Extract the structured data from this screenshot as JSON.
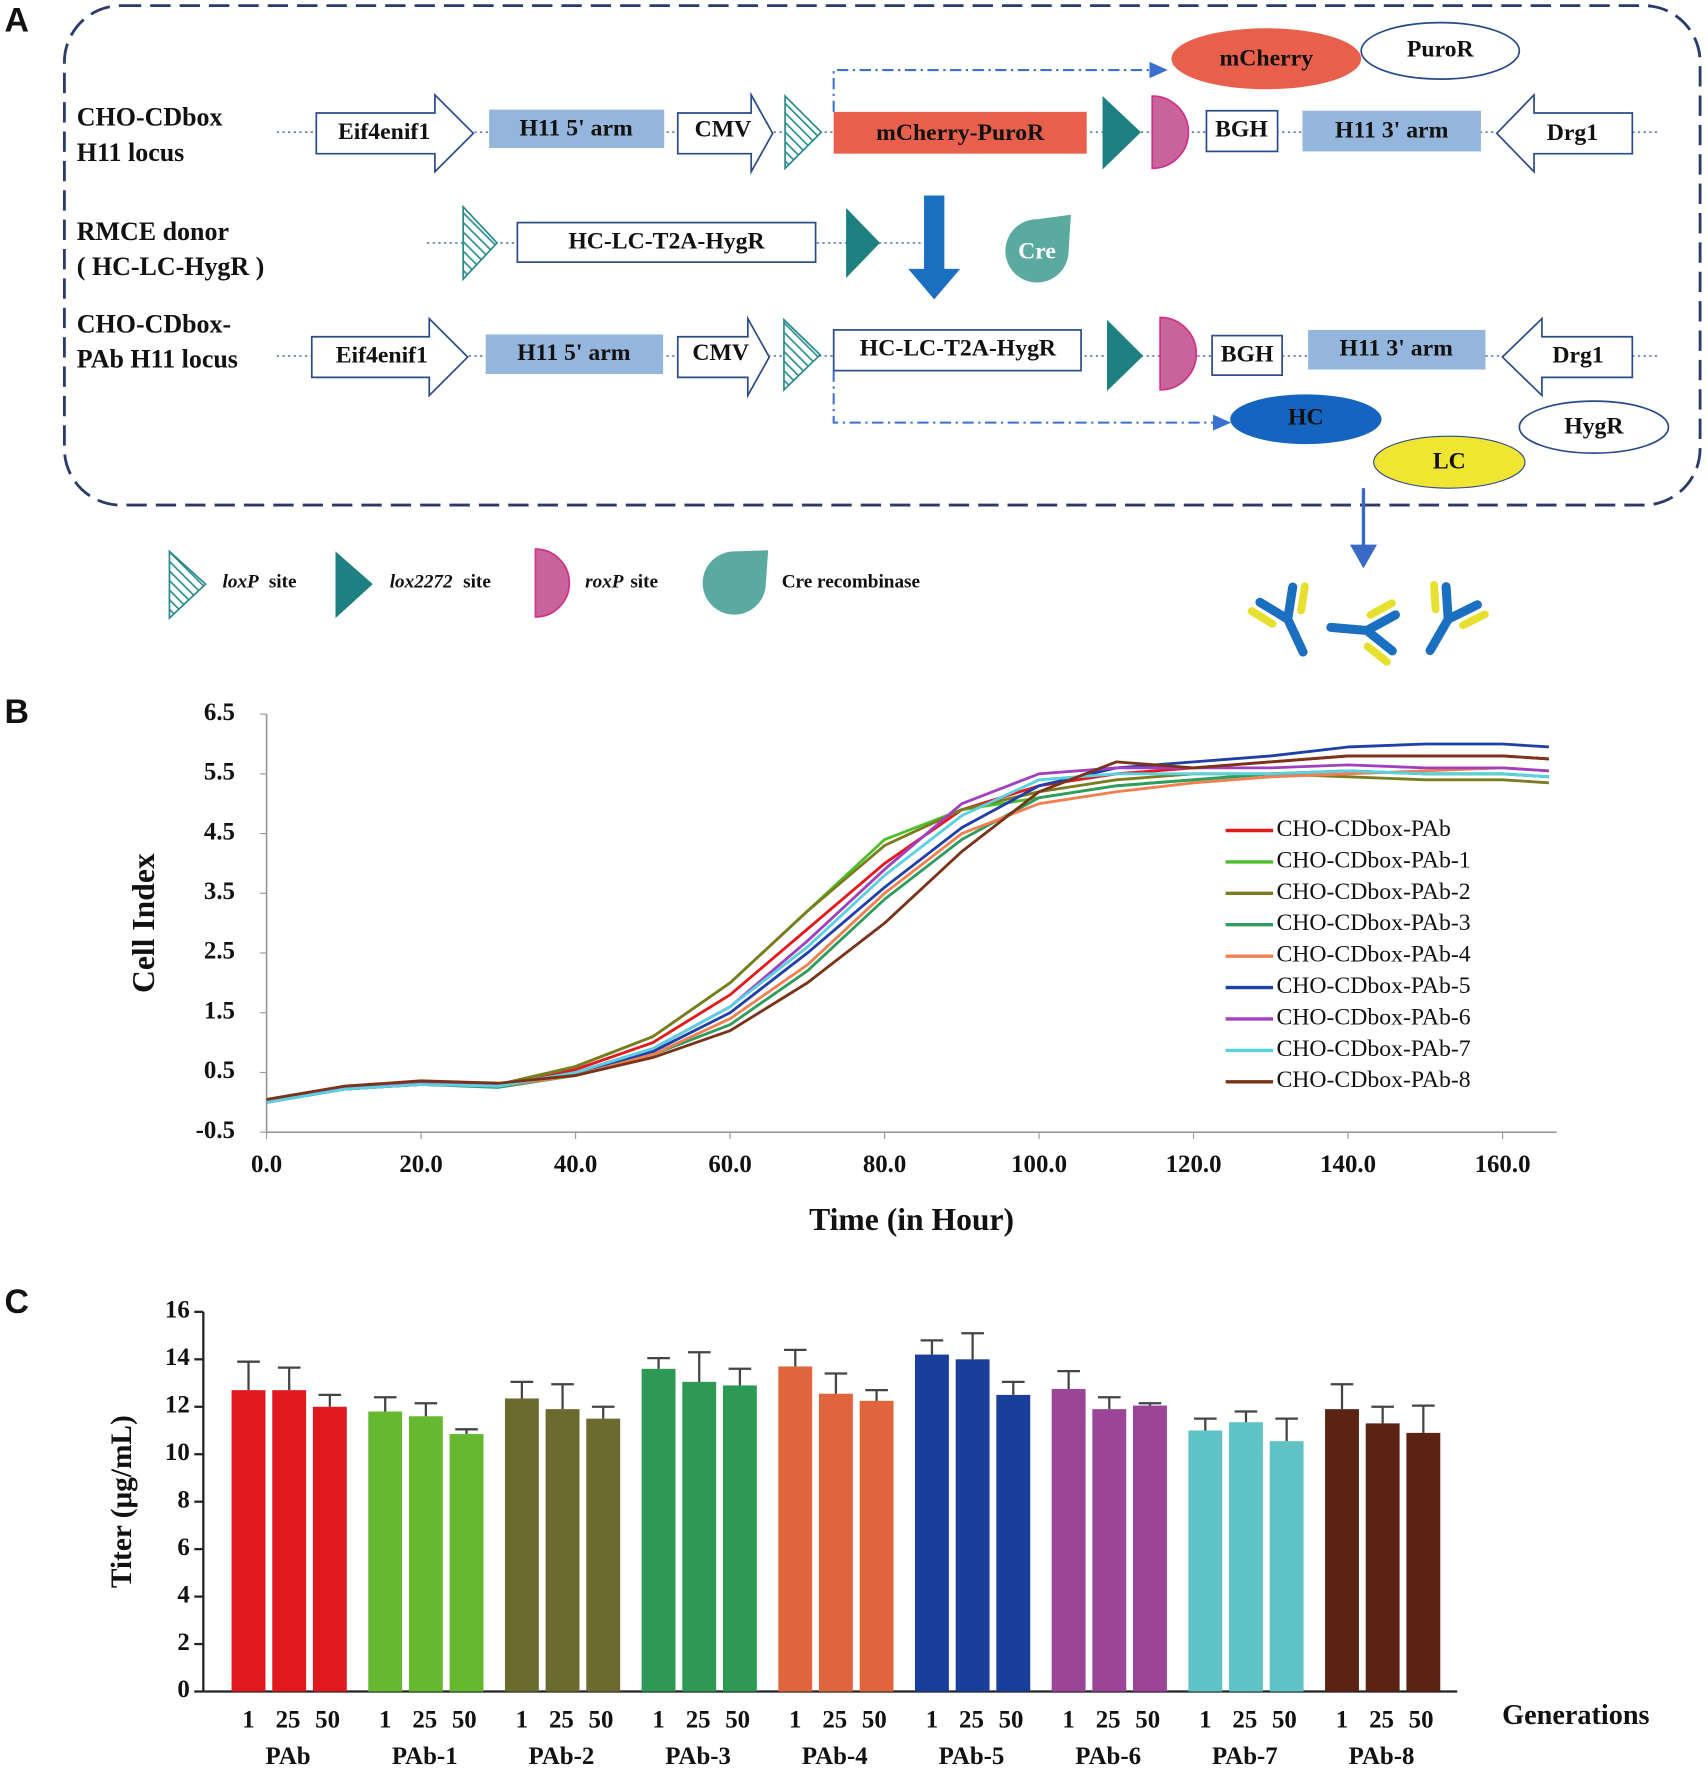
{
  "panel_labels": [
    "A",
    "B",
    "C"
  ],
  "diagram": {
    "rows": [
      {
        "label": [
          "CHO-CDbox",
          "H11 locus"
        ],
        "elements": [
          "Eif4enif1",
          "H11 5' arm",
          "CMV",
          "mCherry-PuroR",
          "BGH",
          "H11 3' arm",
          "Drg1"
        ],
        "products": [
          "mCherry",
          "PuroR"
        ]
      },
      {
        "label": [
          "RMCE donor",
          "( HC-LC-HygR )"
        ],
        "elements": [
          "HC-LC-T2A-HygR"
        ],
        "enzyme": "Cre"
      },
      {
        "label": [
          "CHO-CDbox-",
          "PAb H11 locus"
        ],
        "elements": [
          "Eif4enif1",
          "H11 5' arm",
          "CMV",
          "HC-LC-T2A-HygR",
          "BGH",
          "H11 3' arm",
          "Drg1"
        ],
        "products": [
          "HC",
          "LC",
          "HygR"
        ]
      }
    ],
    "legend": [
      [
        "loxP",
        "site"
      ],
      [
        "lox2272",
        "site"
      ],
      [
        "roxP",
        "site"
      ],
      [
        "Cre recombinase"
      ]
    ]
  },
  "chart_data": [
    {
      "type": "line",
      "xlabel": "Time (in Hour)",
      "ylabel": "Cell Index",
      "x": [
        0,
        10,
        20,
        30,
        40,
        50,
        60,
        70,
        80,
        90,
        100,
        110,
        120,
        130,
        140,
        150,
        160,
        166
      ],
      "xlim": [
        0,
        167
      ],
      "xticks": [
        {
          "value": 0,
          "label": "0.0"
        },
        {
          "value": 20,
          "label": "20.0"
        },
        {
          "value": 40,
          "label": "40.0"
        },
        {
          "value": 60,
          "label": "60.0"
        },
        {
          "value": 80,
          "label": "80.0"
        },
        {
          "value": 100,
          "label": "100.0"
        },
        {
          "value": 120,
          "label": "120.0"
        },
        {
          "value": 140,
          "label": "140.0"
        },
        {
          "value": 160,
          "label": "160.0"
        }
      ],
      "ylim": [
        -0.5,
        6.5
      ],
      "yticks": [
        -0.5,
        0.5,
        1.5,
        2.5,
        3.5,
        4.5,
        5.5,
        6.5
      ],
      "legend": "right",
      "series": [
        {
          "name": "CHO-CDbox-PAb",
          "color": "#e3191c",
          "values": [
            0.02,
            0.25,
            0.35,
            0.3,
            0.55,
            1.0,
            1.8,
            2.9,
            4.0,
            4.9,
            5.3,
            5.5,
            5.6,
            5.7,
            5.8,
            5.8,
            5.8,
            5.75
          ]
        },
        {
          "name": "CHO-CDbox-PAb-1",
          "color": "#4cc02c",
          "values": [
            0.0,
            0.24,
            0.32,
            0.28,
            0.6,
            1.1,
            2.0,
            3.2,
            4.4,
            4.9,
            5.1,
            5.3,
            5.4,
            5.5,
            5.55,
            5.5,
            5.5,
            5.45
          ]
        },
        {
          "name": "CHO-CDbox-PAb-2",
          "color": "#7b7b1f",
          "values": [
            0.0,
            0.25,
            0.33,
            0.3,
            0.6,
            1.1,
            2.0,
            3.2,
            4.3,
            4.9,
            5.2,
            5.4,
            5.5,
            5.5,
            5.45,
            5.4,
            5.4,
            5.35
          ]
        },
        {
          "name": "CHO-CDbox-PAb-3",
          "color": "#2e9d5e",
          "values": [
            0.0,
            0.22,
            0.3,
            0.25,
            0.45,
            0.8,
            1.3,
            2.2,
            3.4,
            4.4,
            5.1,
            5.3,
            5.4,
            5.5,
            5.55,
            5.5,
            5.5,
            5.45
          ]
        },
        {
          "name": "CHO-CDbox-PAb-4",
          "color": "#f08050",
          "values": [
            0.0,
            0.23,
            0.3,
            0.27,
            0.45,
            0.8,
            1.4,
            2.3,
            3.5,
            4.5,
            5.0,
            5.2,
            5.35,
            5.45,
            5.5,
            5.55,
            5.6,
            5.55
          ]
        },
        {
          "name": "CHO-CDbox-PAb-5",
          "color": "#2040a8",
          "values": [
            0.0,
            0.22,
            0.3,
            0.27,
            0.5,
            0.85,
            1.5,
            2.5,
            3.6,
            4.6,
            5.3,
            5.6,
            5.7,
            5.8,
            5.95,
            6.0,
            6.0,
            5.95
          ]
        },
        {
          "name": "CHO-CDbox-PAb-6",
          "color": "#a040c0",
          "values": [
            0.0,
            0.23,
            0.31,
            0.28,
            0.5,
            0.9,
            1.6,
            2.7,
            3.9,
            5.0,
            5.5,
            5.6,
            5.6,
            5.6,
            5.65,
            5.6,
            5.6,
            5.55
          ]
        },
        {
          "name": "CHO-CDbox-PAb-7",
          "color": "#5ad0e0",
          "values": [
            0.0,
            0.22,
            0.3,
            0.27,
            0.5,
            0.9,
            1.6,
            2.6,
            3.8,
            4.8,
            5.4,
            5.5,
            5.5,
            5.5,
            5.55,
            5.5,
            5.5,
            5.45
          ]
        },
        {
          "name": "CHO-CDbox-PAb-8",
          "color": "#7a3218",
          "values": [
            0.05,
            0.27,
            0.36,
            0.32,
            0.45,
            0.75,
            1.2,
            2.0,
            3.0,
            4.2,
            5.2,
            5.7,
            5.6,
            5.7,
            5.8,
            5.8,
            5.8,
            5.75
          ]
        }
      ]
    },
    {
      "type": "bar",
      "ylabel": "Titer (μg/mL)",
      "xlabel": "Generations",
      "categories": [
        "1",
        "25",
        "50"
      ],
      "ylim": [
        0,
        16
      ],
      "yticks": [
        0,
        2,
        4,
        6,
        8,
        10,
        12,
        14,
        16
      ],
      "series": [
        {
          "name": "PAb",
          "color": "#e0191e",
          "values": [
            12.7,
            12.7,
            12.0
          ],
          "errors": [
            1.2,
            0.95,
            0.5
          ]
        },
        {
          "name": "PAb-1",
          "color": "#66b92f",
          "values": [
            11.8,
            11.6,
            10.85
          ],
          "errors": [
            0.6,
            0.55,
            0.2
          ]
        },
        {
          "name": "PAb-2",
          "color": "#6b6a2f",
          "values": [
            12.35,
            11.9,
            11.5
          ],
          "errors": [
            0.7,
            1.05,
            0.5
          ]
        },
        {
          "name": "PAb-3",
          "color": "#2e9955",
          "values": [
            13.6,
            13.05,
            12.9
          ],
          "errors": [
            0.45,
            1.25,
            0.7
          ]
        },
        {
          "name": "PAb-4",
          "color": "#e0643c",
          "values": [
            13.7,
            12.55,
            12.25
          ],
          "errors": [
            0.7,
            0.85,
            0.45
          ]
        },
        {
          "name": "PAb-5",
          "color": "#1a3f9a",
          "values": [
            14.2,
            14.0,
            12.5
          ],
          "errors": [
            0.6,
            1.1,
            0.55
          ]
        },
        {
          "name": "PAb-6",
          "color": "#9a4597",
          "values": [
            12.75,
            11.9,
            12.05
          ],
          "errors": [
            0.75,
            0.5,
            0.1
          ]
        },
        {
          "name": "PAb-7",
          "color": "#5fc3c8",
          "values": [
            11.0,
            11.35,
            10.55
          ],
          "errors": [
            0.5,
            0.45,
            0.95
          ]
        },
        {
          "name": "PAb-8",
          "color": "#5a2314",
          "values": [
            11.9,
            11.3,
            10.9
          ],
          "errors": [
            1.05,
            0.7,
            1.15
          ]
        }
      ]
    }
  ]
}
